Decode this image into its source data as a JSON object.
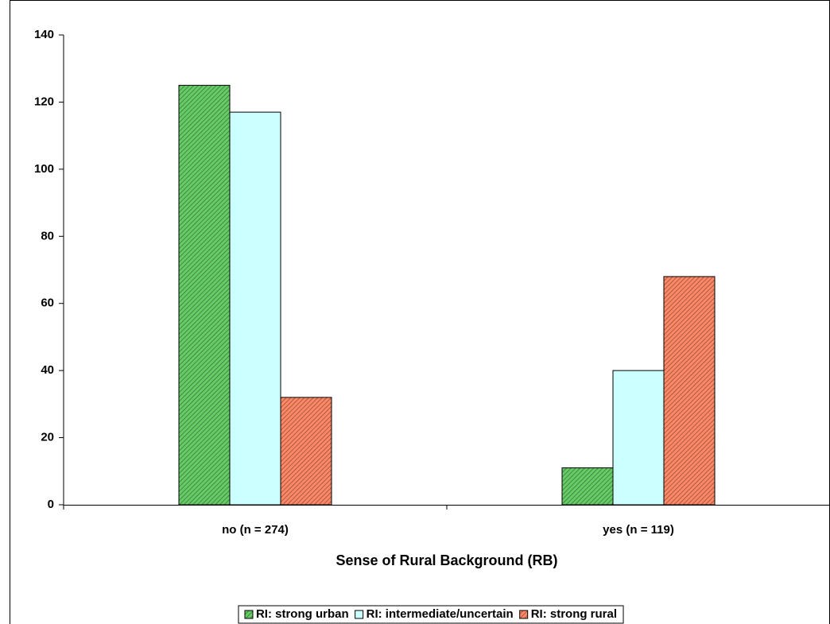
{
  "chart_data": {
    "type": "bar",
    "xlabel": "Sense of Rural Background (RB)",
    "categories": [
      "no (n = 274)",
      "yes (n = 119)"
    ],
    "series": [
      {
        "name": "RI: strong urban",
        "color": "#66cc66",
        "hatch": true,
        "values": [
          125,
          11
        ]
      },
      {
        "name": "RI: intermediate/uncertain",
        "color": "#ccffff",
        "hatch": false,
        "values": [
          117,
          40
        ]
      },
      {
        "name": "RI: strong rural",
        "color": "#ff8866",
        "hatch": true,
        "values": [
          32,
          68
        ]
      }
    ],
    "ylim": [
      0,
      140
    ],
    "yticks": [
      0,
      20,
      40,
      60,
      80,
      100,
      120,
      140
    ],
    "grid": false,
    "legend": "bottom"
  }
}
